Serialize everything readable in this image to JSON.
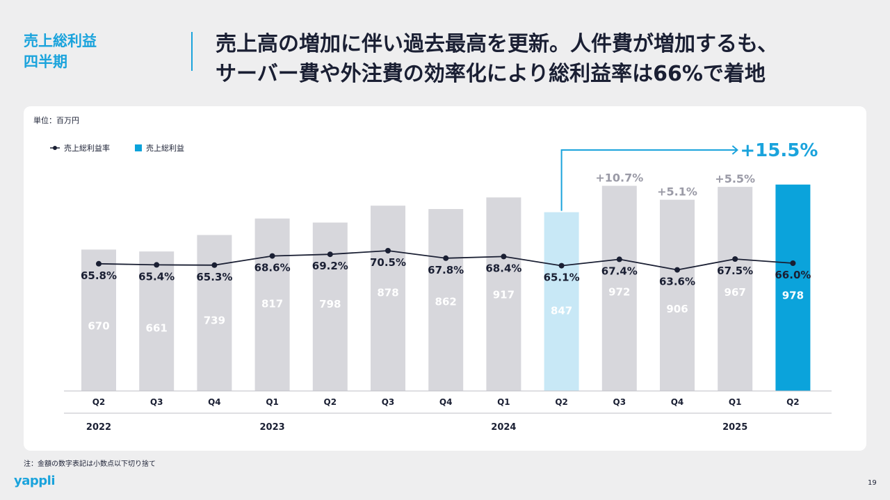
{
  "header": {
    "section_line1": "売上総利益",
    "section_line2": "四半期",
    "headline_line1": "売上高の増加に伴い過去最高を更新。人件費が増加するも、",
    "headline_line2": "サーバー費や外注費の効率化により総利益率は66%で着地"
  },
  "footnote": "注：金額の数字表記は小数点以下切り捨て",
  "logo_text": "yappli",
  "page_number": "19",
  "colors": {
    "accent": "#1aa3dc",
    "bar_default": "#d7d7dc",
    "bar_prior_year": "#c8e8f6",
    "bar_current": "#0ba3db",
    "line": "#1a1f33",
    "growth_label": "#9a9aa6",
    "headline": "#1a1f33"
  },
  "chart_data": {
    "type": "bar",
    "unit_label": "単位：百万円",
    "categories": [
      "Q2",
      "Q3",
      "Q4",
      "Q1",
      "Q2",
      "Q3",
      "Q4",
      "Q1",
      "Q2",
      "Q3",
      "Q4",
      "Q1",
      "Q2"
    ],
    "years": [
      {
        "label": "2022",
        "category_index": 0
      },
      {
        "label": "2023",
        "category_index": 3
      },
      {
        "label": "2024",
        "category_index": 7
      },
      {
        "label": "2025",
        "category_index": 11
      }
    ],
    "series": [
      {
        "name": "売上総利益",
        "type": "bar",
        "values": [
          670,
          661,
          739,
          817,
          798,
          878,
          862,
          917,
          847,
          972,
          906,
          967,
          978
        ]
      },
      {
        "name": "売上総利益率",
        "type": "line",
        "values": [
          65.8,
          65.4,
          65.3,
          68.6,
          69.2,
          70.5,
          67.8,
          68.4,
          65.1,
          67.4,
          63.6,
          67.5,
          66.0
        ]
      }
    ],
    "bar_labels": [
      "670",
      "661",
      "739",
      "817",
      "798",
      "878",
      "862",
      "917",
      "847",
      "972",
      "906",
      "967",
      "978"
    ],
    "rate_labels": [
      "65.8%",
      "65.4%",
      "65.3%",
      "68.6%",
      "69.2%",
      "70.5%",
      "67.8%",
      "68.4%",
      "65.1%",
      "67.4%",
      "63.6%",
      "67.5%",
      "66.0%"
    ],
    "growth_labels": [
      {
        "category_index": 9,
        "text": "+10.7%"
      },
      {
        "category_index": 10,
        "text": "+5.1%"
      },
      {
        "category_index": 11,
        "text": "+5.5%"
      }
    ],
    "yoy_callout": {
      "from_index": 8,
      "to_index": 12,
      "text": "+15.5%"
    },
    "highlight": {
      "prior_year_index": 8,
      "current_index": 12
    },
    "bar_ylim": [
      0,
      1020
    ],
    "rate_ylim": [
      40,
      85
    ]
  }
}
